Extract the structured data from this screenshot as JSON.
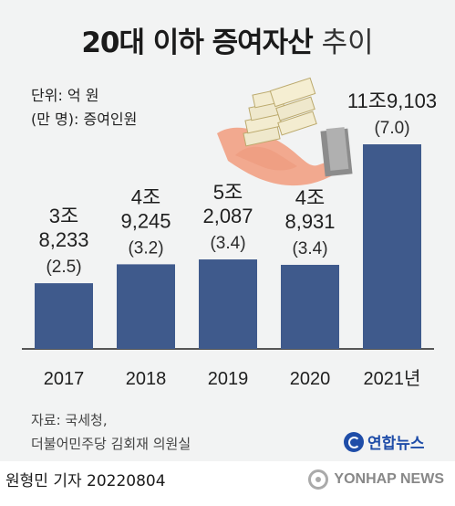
{
  "title": {
    "bold": "20대 이하 증여자산",
    "light": "추이"
  },
  "unit": {
    "line1": "단위: 억 원",
    "line2": "(만 명): 증여인원"
  },
  "chart_data": {
    "type": "bar",
    "categories": [
      "2017",
      "2018",
      "2019",
      "2020",
      "2021년"
    ],
    "values": [
      38233,
      49245,
      52087,
      48931,
      119103
    ],
    "value_labels": [
      [
        "3조",
        "8,233"
      ],
      [
        "4조",
        "9,245"
      ],
      [
        "5조",
        "2,087"
      ],
      [
        "4조",
        "8,931"
      ],
      [
        "11조9,103"
      ]
    ],
    "people": [
      "(2.5)",
      "(3.2)",
      "(3.4)",
      "(3.4)",
      "(7.0)"
    ],
    "people_values": [
      2.5,
      3.2,
      3.4,
      3.4,
      7.0
    ],
    "ylim": [
      0,
      119103
    ],
    "bar_color": "#3f5a8c",
    "grid": false,
    "legend": "none"
  },
  "source": {
    "line1": "자료: 국세청,",
    "line2": "더불어민주당 김회재 의원실"
  },
  "brand": {
    "name": "연합뉴스",
    "color": "#1f4da8"
  },
  "footer": {
    "author": "원형민 기자  20220804",
    "agency": "YONHAP NEWS"
  },
  "illustration": {
    "icon": "hand-holding-money-icon"
  }
}
